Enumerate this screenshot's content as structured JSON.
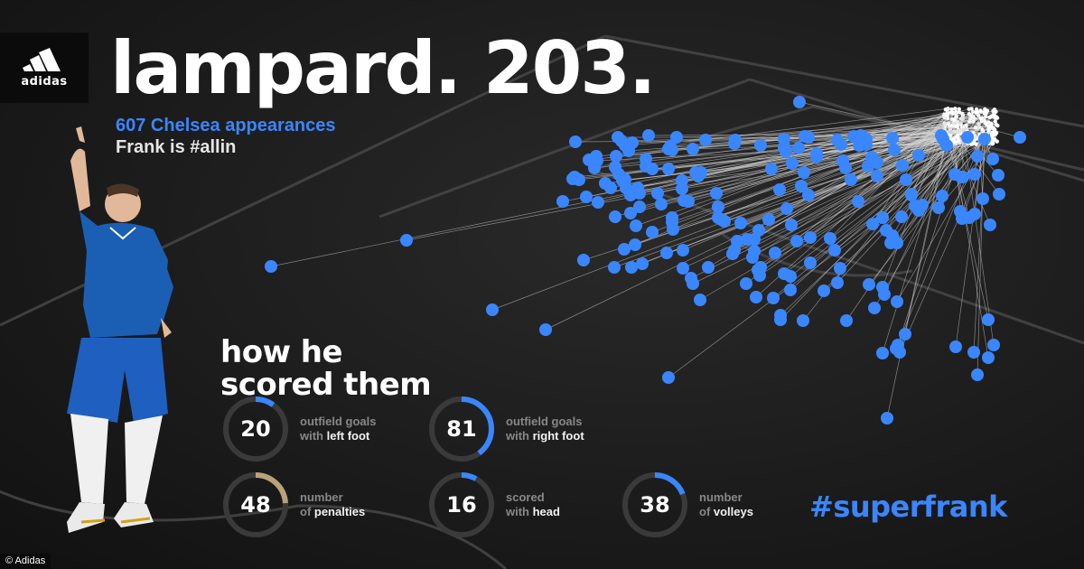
{
  "logo": {
    "brand": "adidas"
  },
  "headline": "lampard. 203.",
  "subtitle": {
    "appearances": "607 Chelsea appearances",
    "tagline": "Frank is #allin"
  },
  "section_title": {
    "line1": "how he",
    "line2": "scored them"
  },
  "stats": [
    {
      "value": "20",
      "fraction": 0.1,
      "color": "#3a86ff",
      "label_line1": "outfield goals",
      "label_line2_pre": "with ",
      "label_line2_hl": "left foot"
    },
    {
      "value": "81",
      "fraction": 0.4,
      "color": "#3a86ff",
      "label_line1": "outfield goals",
      "label_line2_pre": "with ",
      "label_line2_hl": "right foot"
    },
    {
      "value": "48",
      "fraction": 0.24,
      "color": "#b8a27a",
      "label_line1": "number",
      "label_line2_pre": "of ",
      "label_line2_hl": "penalties"
    },
    {
      "value": "16",
      "fraction": 0.08,
      "color": "#3a86ff",
      "label_line1": "scored",
      "label_line2_pre": "with ",
      "label_line2_hl": "head"
    },
    {
      "value": "38",
      "fraction": 0.19,
      "color": "#3a86ff",
      "label_line1": "number",
      "label_line2_pre": "of ",
      "label_line2_hl": "volleys"
    }
  ],
  "hashtag": "#superfrank",
  "credit": "© Adidas",
  "colors": {
    "accent": "#3a86ff",
    "background": "#1e1e1e",
    "penalty": "#b8a27a"
  },
  "shot_map": {
    "goal_count": 203
  }
}
